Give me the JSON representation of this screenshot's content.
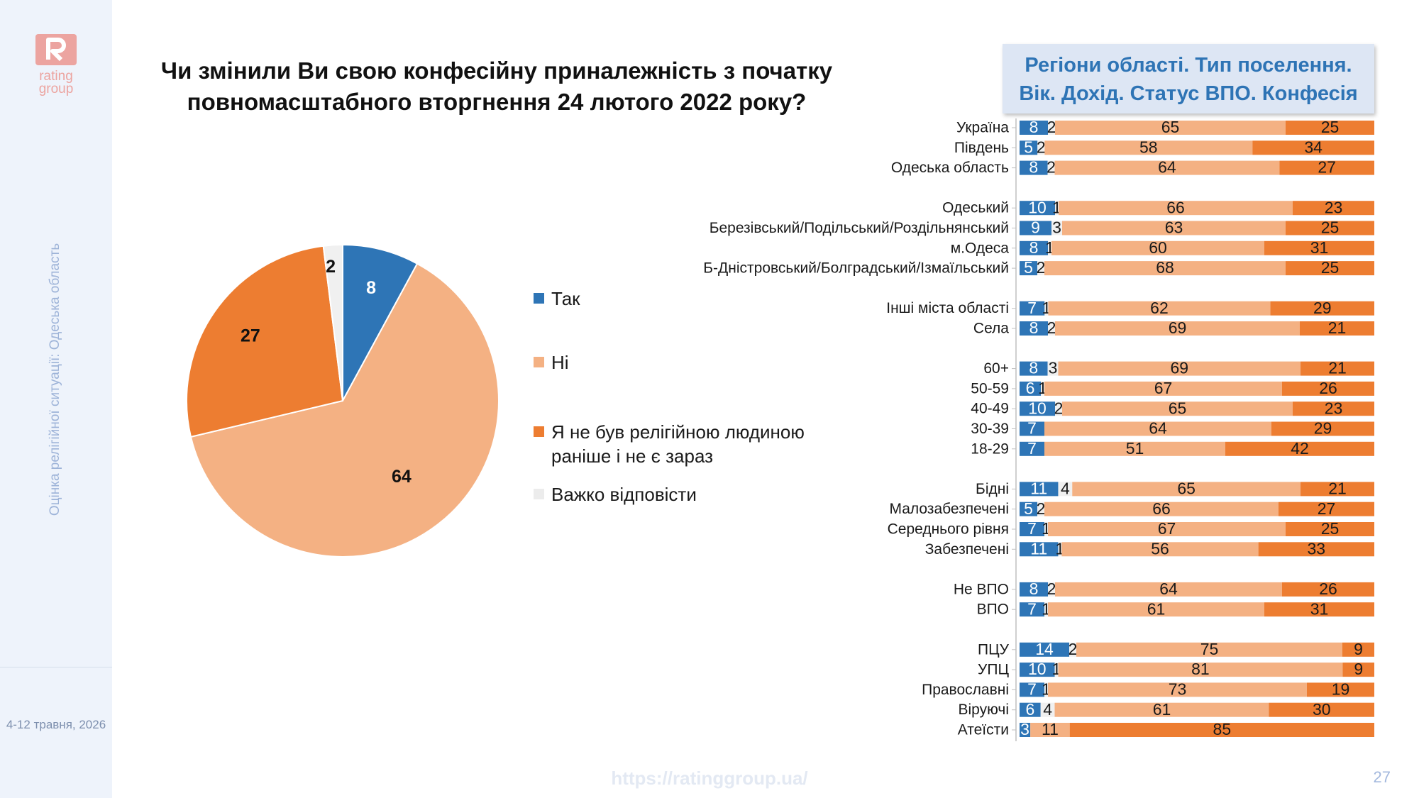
{
  "sidebar": {
    "logo_text": [
      "rating",
      "group"
    ],
    "vertical_text": "Оцінка релігійної ситуації: Одеська область",
    "date": "4-12 травня, 2026"
  },
  "title": "Чи змінили Ви свою конфесійну приналежність з початку повномасштабного вторгнення 24 лютого 2022 року?",
  "header_box": {
    "line1": "Регіони області. Тип поселення.",
    "line2": "Вік. Дохід. Статус ВПО. Конфесія"
  },
  "footer": {
    "url": "https://ratinggroup.ua/",
    "page": "27"
  },
  "chart_data": [
    {
      "type": "pie",
      "series": [
        {
          "name": "Так",
          "value": 8,
          "color": "#2e75b6"
        },
        {
          "name": "Ні",
          "value": 64,
          "color": "#f4b183"
        },
        {
          "name": "Я не був релігійною людиною раніше і не є зараз",
          "value": 27,
          "color": "#ed7d31"
        },
        {
          "name": "Важко відповісти",
          "value": 2,
          "color": "#f0f0f0"
        }
      ],
      "legend_placement": "right"
    },
    {
      "type": "bar",
      "orientation": "horizontal",
      "stacked": true,
      "series": [
        {
          "name": "Так",
          "color": "#2e75b6"
        },
        {
          "name": "Важко відповісти",
          "color": "#f0f0f0"
        },
        {
          "name": "Ні",
          "color": "#f4b183"
        },
        {
          "name": "Я не був релігійною людиною раніше і не є зараз",
          "color": "#ed7d31"
        }
      ],
      "rows": [
        {
          "label": "Україна",
          "values": [
            8,
            2,
            65,
            25
          ],
          "group": 0
        },
        {
          "label": "Південь",
          "values": [
            5,
            2,
            58,
            34
          ],
          "group": 0
        },
        {
          "label": "Одеська область",
          "values": [
            8,
            2,
            64,
            27
          ],
          "group": 0
        },
        {
          "label": "Одеський",
          "values": [
            10,
            1,
            66,
            23
          ],
          "group": 1
        },
        {
          "label": "Березівський/Подільський/Роздільнянський",
          "values": [
            9,
            3,
            63,
            25
          ],
          "group": 1
        },
        {
          "label": "м.Одеса",
          "values": [
            8,
            1,
            60,
            31
          ],
          "group": 1
        },
        {
          "label": "Б-Дністровський/Болградський/Ізмаїльський",
          "values": [
            5,
            2,
            68,
            25
          ],
          "group": 1
        },
        {
          "label": "Інші міста області",
          "values": [
            7,
            1,
            62,
            29
          ],
          "group": 2
        },
        {
          "label": "Села",
          "values": [
            8,
            2,
            69,
            21
          ],
          "group": 2
        },
        {
          "label": "60+",
          "values": [
            8,
            3,
            69,
            21
          ],
          "group": 3
        },
        {
          "label": "50-59",
          "values": [
            6,
            1,
            67,
            26
          ],
          "group": 3
        },
        {
          "label": "40-49",
          "values": [
            10,
            2,
            65,
            23
          ],
          "group": 3
        },
        {
          "label": "30-39",
          "values": [
            7,
            0,
            64,
            29
          ],
          "group": 3
        },
        {
          "label": "18-29",
          "values": [
            7,
            0,
            51,
            42
          ],
          "group": 3
        },
        {
          "label": "Бідні",
          "values": [
            11,
            4,
            65,
            21
          ],
          "group": 4
        },
        {
          "label": "Малозабезпечені",
          "values": [
            5,
            2,
            66,
            27
          ],
          "group": 4
        },
        {
          "label": "Середнього рівня",
          "values": [
            7,
            1,
            67,
            25
          ],
          "group": 4
        },
        {
          "label": "Забезпечені",
          "values": [
            11,
            1,
            56,
            33
          ],
          "group": 4
        },
        {
          "label": "Не ВПО",
          "values": [
            8,
            2,
            64,
            26
          ],
          "group": 5
        },
        {
          "label": "ВПО",
          "values": [
            7,
            1,
            61,
            31
          ],
          "group": 5
        },
        {
          "label": "ПЦУ",
          "values": [
            14,
            2,
            75,
            9
          ],
          "group": 6
        },
        {
          "label": "УПЦ",
          "values": [
            10,
            1,
            81,
            9
          ],
          "group": 6
        },
        {
          "label": "Православні",
          "values": [
            7,
            1,
            73,
            19
          ],
          "group": 6
        },
        {
          "label": "Віруючі",
          "values": [
            6,
            4,
            61,
            30
          ],
          "group": 6
        },
        {
          "label": "Атеїсти",
          "values": [
            3,
            0,
            11,
            85
          ],
          "group": 6
        }
      ]
    }
  ]
}
